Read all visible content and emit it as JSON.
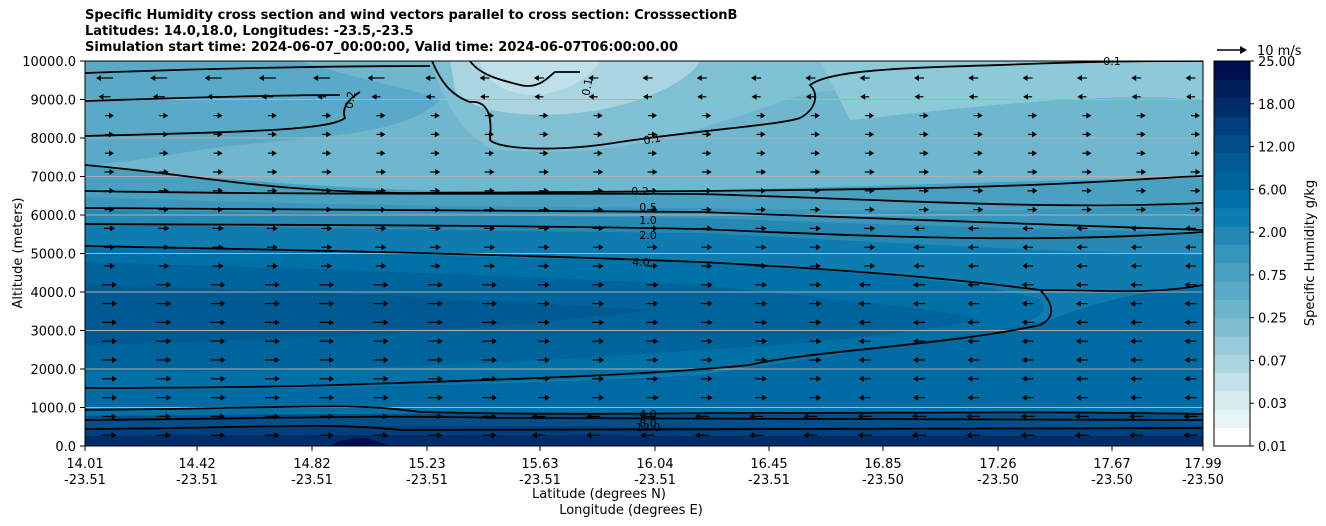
{
  "title": {
    "line1": "Specific Humidity cross section and wind vectors parallel to cross section: CrosssectionB",
    "line2": "Latitudes: 14.0,18.0, Longitudes: -23.5,-23.5",
    "line3": "Simulation start time: 2024-06-07_00:00:00, Valid time: 2024-06-07T06:00:00.00"
  },
  "chart_data": {
    "type": "heatmap",
    "ylabel": "Altitude (meters)",
    "xlabel_lat": "Latitude (degrees N)",
    "xlabel_lon": "Longitude (degrees E)",
    "ylim": [
      0,
      10000
    ],
    "y_ticks": [
      "0.0",
      "1000.0",
      "2000.0",
      "3000.0",
      "4000.0",
      "5000.0",
      "6000.0",
      "7000.0",
      "8000.0",
      "9000.0",
      "10000.0"
    ],
    "y_tick_values": [
      0,
      1000,
      2000,
      3000,
      4000,
      5000,
      6000,
      7000,
      8000,
      9000,
      10000
    ],
    "x_ticks_lat": [
      "14.01",
      "14.42",
      "14.82",
      "15.23",
      "15.63",
      "16.04",
      "16.45",
      "16.85",
      "17.26",
      "17.67",
      "17.99"
    ],
    "x_ticks_lon": [
      "-23.51",
      "-23.51",
      "-23.51",
      "-23.51",
      "-23.51",
      "-23.51",
      "-23.51",
      "-23.50",
      "-23.50",
      "-23.50",
      "-23.50"
    ],
    "x_range": [
      14.01,
      17.99
    ],
    "horizontal_grid": true,
    "colorbar": {
      "label": "Specific Humidity g/kg",
      "tick_labels": [
        "0.01",
        "0.03",
        "0.07",
        "0.25",
        "0.75",
        "2.00",
        "6.00",
        "12.00",
        "18.00",
        "25.00"
      ],
      "tick_values": [
        0.01,
        0.03,
        0.07,
        0.25,
        0.75,
        2.0,
        6.0,
        12.0,
        18.0,
        25.0
      ],
      "colors": [
        "#ffffff",
        "#e9f4f6",
        "#d8ebef",
        "#c3e1e8",
        "#add5e0",
        "#96cad9",
        "#80bed2",
        "#6cb4cc",
        "#5aa9c6",
        "#489fc0",
        "#3695bb",
        "#2489b3",
        "#0b7dae",
        "#0071a7",
        "#00649b",
        "#005a93",
        "#004c87",
        "#003f7c",
        "#002c6a",
        "#001d5c",
        "#000e4e"
      ]
    },
    "contours": [
      {
        "level": "0.1",
        "note": "upper dry region"
      },
      {
        "level": "0.2"
      },
      {
        "level": "0.5"
      },
      {
        "level": "1.0"
      },
      {
        "level": "2.0"
      },
      {
        "level": "4.0"
      },
      {
        "level": "8.0"
      },
      {
        "level": "12.0"
      }
    ],
    "contour_labels": [
      "0.1",
      "0.1",
      "0.1",
      "0.2",
      "0.2",
      "0.5",
      "1.0",
      "2.0",
      "4.0",
      "4.0",
      "8.0",
      "12.0"
    ],
    "wind_vectors": {
      "reference_label": "10 m/s",
      "reference_speed": 10,
      "upper_direction": "westward aloft near 9500 m, eastward between 6500-9000 m",
      "low_level_direction": "eastward (left to right) in lower troposphere at southern latitudes, westward north of 16.8"
    }
  }
}
